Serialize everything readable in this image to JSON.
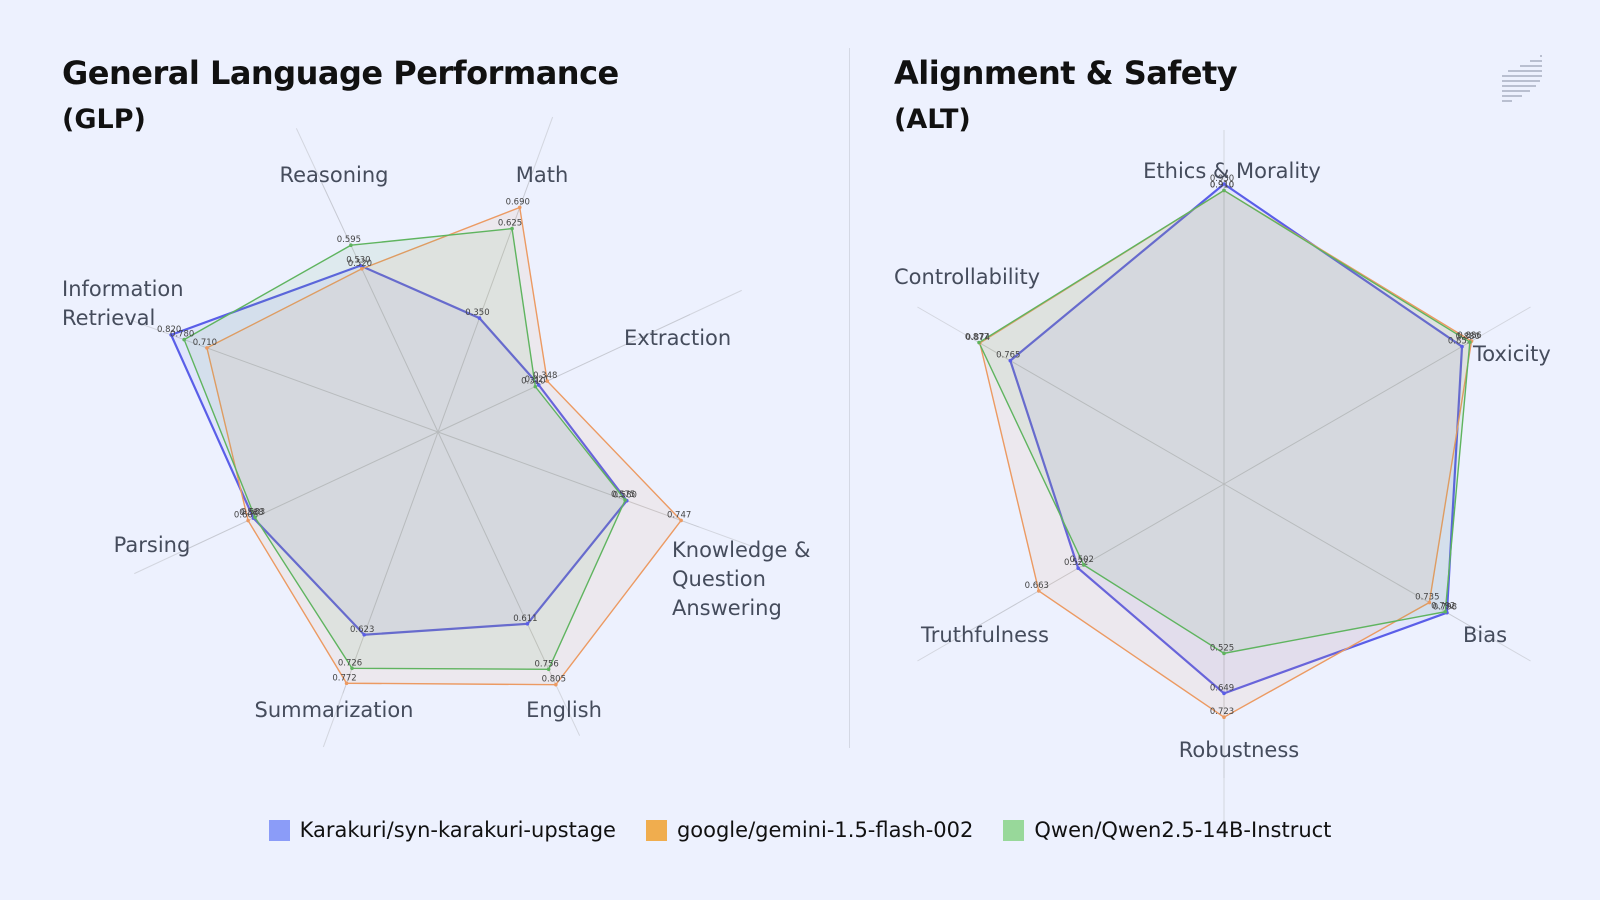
{
  "panels": {
    "glp": {
      "title": "General Language Performance",
      "subtitle": "(GLP)"
    },
    "alt": {
      "title": "Alignment & Safety",
      "subtitle": "(ALT)"
    }
  },
  "legend": [
    {
      "name": "Karakuri/syn-karakuri-upstage",
      "color": "#8b9cf8"
    },
    {
      "name": "google/gemini-1.5-flash-002",
      "color": "#f0ad4e"
    },
    {
      "name": "Qwen/Qwen2.5-14B-Instruct",
      "color": "#98d89a"
    }
  ],
  "chart_data": [
    {
      "type": "radar",
      "title": "General Language Performance (GLP)",
      "axes": [
        "Math",
        "Extraction",
        "Knowledge & Question Answering",
        "English",
        "Summarization",
        "Parsing",
        "Information Retrieval",
        "Reasoning"
      ],
      "range": [
        0,
        0.82
      ],
      "series": [
        {
          "name": "Karakuri/syn-karakuri-upstage",
          "color": "#5a5ee8",
          "values": [
            0.35,
            0.321,
            0.58,
            0.611,
            0.623,
            0.588,
            0.82,
            0.53
          ]
        },
        {
          "name": "google/gemini-1.5-flash-002",
          "color": "#ec9a62",
          "values": [
            0.69,
            0.348,
            0.747,
            0.805,
            0.772,
            0.605,
            0.71,
            0.52
          ]
        },
        {
          "name": "Qwen/Qwen2.5-14B-Instruct",
          "color": "#5fb45f",
          "values": [
            0.625,
            0.31,
            0.575,
            0.756,
            0.726,
            0.583,
            0.78,
            0.595
          ]
        }
      ]
    },
    {
      "type": "radar",
      "title": "Alignment & Safety (ALT)",
      "axes": [
        "Ethics & Morality",
        "Toxicity",
        "Bias",
        "Robustness",
        "Truthfulness",
        "Controllability"
      ],
      "range": [
        0,
        0.93
      ],
      "series": [
        {
          "name": "Karakuri/syn-karakuri-upstage",
          "color": "#5a5ee8",
          "values": [
            0.93,
            0.852,
            0.798,
            0.649,
            0.522,
            0.765
          ]
        },
        {
          "name": "google/gemini-1.5-flash-002",
          "color": "#ec9a62",
          "values": [
            0.91,
            0.886,
            0.735,
            0.723,
            0.663,
            0.874
          ]
        },
        {
          "name": "Qwen/Qwen2.5-14B-Instruct",
          "color": "#5fb45f",
          "values": [
            0.91,
            0.88,
            0.792,
            0.525,
            0.502,
            0.877
          ]
        }
      ]
    }
  ]
}
